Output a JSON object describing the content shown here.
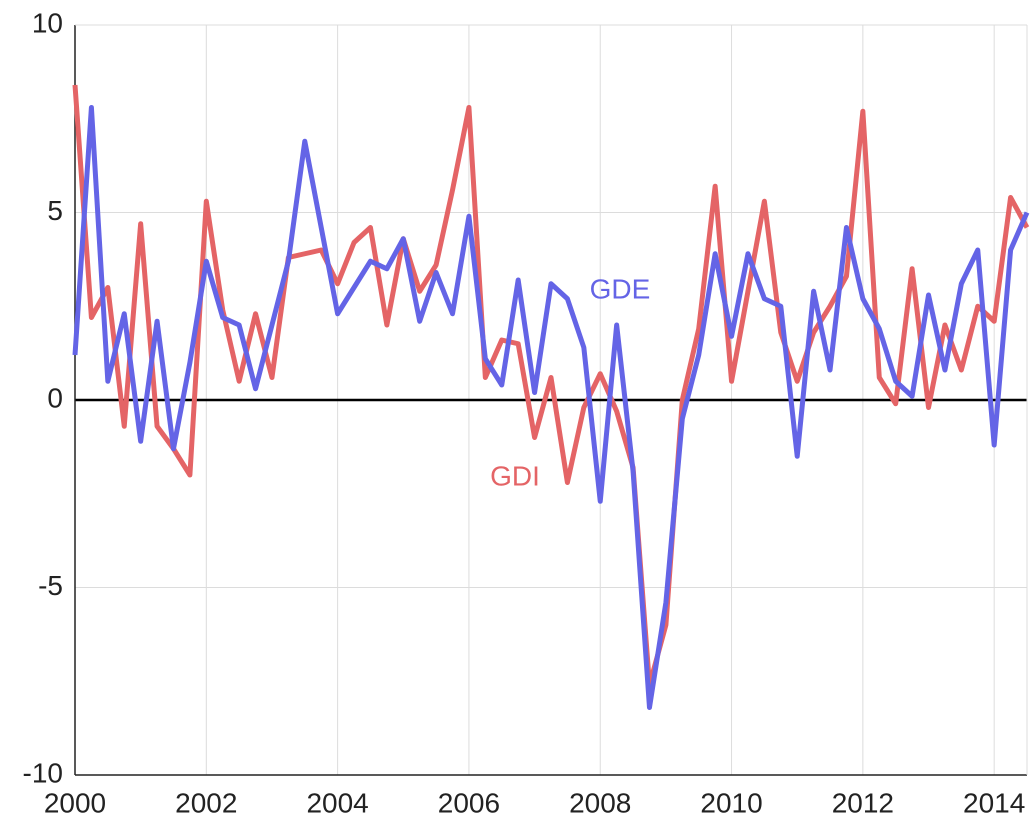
{
  "chart_data": {
    "type": "line",
    "x": [
      2000,
      2000.25,
      2000.5,
      2000.75,
      2001,
      2001.25,
      2001.5,
      2001.75,
      2002,
      2002.25,
      2002.5,
      2002.75,
      2003,
      2003.25,
      2003.5,
      2003.75,
      2004,
      2004.25,
      2004.5,
      2004.75,
      2005,
      2005.25,
      2005.5,
      2005.75,
      2006,
      2006.25,
      2006.5,
      2006.75,
      2007,
      2007.25,
      2007.5,
      2007.75,
      2008,
      2008.25,
      2008.5,
      2008.75,
      2009,
      2009.25,
      2009.5,
      2009.75,
      2010,
      2010.25,
      2010.5,
      2010.75,
      2011,
      2011.25,
      2011.5,
      2011.75,
      2012,
      2012.25,
      2012.5,
      2012.75,
      2013,
      2013.25,
      2013.5,
      2013.75,
      2014,
      2014.25,
      2014.5
    ],
    "series": [
      {
        "name": "GDI",
        "color": "#e46466",
        "values": [
          8.4,
          2.2,
          3.0,
          -0.7,
          4.7,
          -0.7,
          -1.3,
          -2.0,
          5.3,
          2.4,
          0.5,
          2.3,
          0.6,
          3.8,
          3.9,
          4.0,
          3.1,
          4.2,
          4.6,
          2.0,
          4.3,
          2.9,
          3.6,
          5.6,
          7.8,
          0.6,
          1.6,
          1.5,
          -1.0,
          0.6,
          -2.2,
          -0.2,
          0.7,
          -0.3,
          -1.8,
          -7.6,
          -6.0,
          0.0,
          1.9,
          5.7,
          0.5,
          2.9,
          5.3,
          1.8,
          0.5,
          1.8,
          2.5,
          3.3,
          7.7,
          0.6,
          -0.1,
          3.5,
          -0.2,
          2.0,
          0.8,
          2.5,
          2.1,
          5.4,
          4.6
        ]
      },
      {
        "name": "GDE",
        "color": "#6464e6",
        "values": [
          1.2,
          7.8,
          0.5,
          2.3,
          -1.1,
          2.1,
          -1.3,
          1.0,
          3.7,
          2.2,
          2.0,
          0.3,
          2.0,
          3.7,
          6.9,
          4.6,
          2.3,
          3.0,
          3.7,
          3.5,
          4.3,
          2.1,
          3.4,
          2.3,
          4.9,
          1.1,
          0.4,
          3.2,
          0.2,
          3.1,
          2.7,
          1.4,
          -2.7,
          2.0,
          -1.9,
          -8.2,
          -5.4,
          -0.5,
          1.2,
          3.9,
          1.7,
          3.9,
          2.7,
          2.5,
          -1.5,
          2.9,
          0.8,
          4.6,
          2.7,
          1.9,
          0.5,
          0.1,
          2.8,
          0.8,
          3.1,
          4.0,
          -1.2,
          4.0,
          5.0
        ]
      }
    ],
    "annotations": [
      "GDI",
      "GDE"
    ],
    "xlim": [
      2000,
      2014.5
    ],
    "xticks": [
      2000,
      2002,
      2004,
      2006,
      2008,
      2010,
      2012,
      2014
    ],
    "ylim": [
      -10,
      10
    ],
    "yticks": [
      -10,
      -5,
      0,
      5,
      10
    ],
    "grid": true
  }
}
